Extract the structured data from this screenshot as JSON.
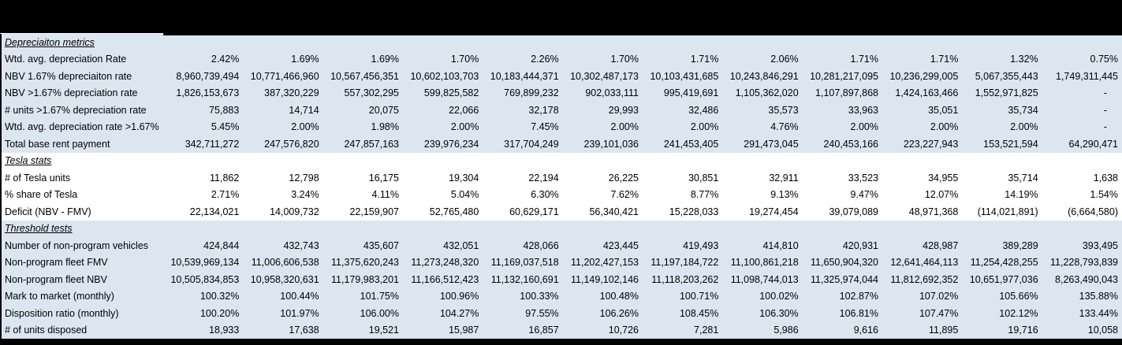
{
  "colors": {
    "section_fill_blue": "#dce6f1",
    "section_fill_white": "#ffffff",
    "bar_black": "#000000",
    "text": "#000000"
  },
  "table": {
    "data_column_count": 12,
    "sections": [
      {
        "header": "Depreciaiton metrics",
        "fill": "#dce6f1",
        "rows": [
          {
            "label": "Wtd. avg. depreciation Rate",
            "values": [
              "2.42%",
              "1.69%",
              "1.69%",
              "1.70%",
              "2.26%",
              "1.70%",
              "1.71%",
              "2.06%",
              "1.71%",
              "1.71%",
              "1.32%",
              "0.75%"
            ]
          },
          {
            "label": "NBV 1.67% depreciaiton rate",
            "values": [
              "8,960,739,494",
              "10,771,466,960",
              "10,567,456,351",
              "10,602,103,703",
              "10,183,444,371",
              "10,302,487,173",
              "10,103,431,685",
              "10,243,846,291",
              "10,281,217,095",
              "10,236,299,005",
              "5,067,355,443",
              "1,749,311,445"
            ]
          },
          {
            "label": "NBV >1.67% depreciation rate",
            "values": [
              "1,826,153,673",
              "387,320,229",
              "557,302,295",
              "599,825,582",
              "769,899,232",
              "902,033,111",
              "995,419,691",
              "1,105,362,020",
              "1,107,897,868",
              "1,424,163,466",
              "1,552,971,825",
              "-"
            ]
          },
          {
            "label": "# units >1.67% depreciation rate",
            "values": [
              "75,883",
              "14,714",
              "20,075",
              "22,066",
              "32,178",
              "29,993",
              "32,486",
              "35,573",
              "33,963",
              "35,051",
              "35,734",
              "-"
            ]
          },
          {
            "label": "Wtd. avg. depreciation rate >1.67%",
            "values": [
              "5.45%",
              "2.00%",
              "1.98%",
              "2.00%",
              "7.45%",
              "2.00%",
              "2.00%",
              "4.76%",
              "2.00%",
              "2.00%",
              "2.00%",
              "-"
            ]
          },
          {
            "label": "Total base rent payment",
            "values": [
              "342,711,272",
              "247,576,820",
              "247,857,163",
              "239,976,234",
              "317,704,249",
              "239,101,036",
              "241,453,405",
              "291,473,045",
              "240,453,166",
              "223,227,943",
              "153,521,594",
              "64,290,471"
            ]
          }
        ]
      },
      {
        "header": "Tesla stats",
        "fill": "#ffffff",
        "rows": [
          {
            "label": "# of Tesla units",
            "values": [
              "11,862",
              "12,798",
              "16,175",
              "19,304",
              "22,194",
              "26,225",
              "30,851",
              "32,911",
              "33,523",
              "34,955",
              "35,714",
              "1,638"
            ]
          },
          {
            "label": "% share of Tesla",
            "values": [
              "2.71%",
              "3.24%",
              "4.11%",
              "5.04%",
              "6.30%",
              "7.62%",
              "8.77%",
              "9.13%",
              "9.47%",
              "12.07%",
              "14.19%",
              "1.54%"
            ]
          },
          {
            "label": "Deficit (NBV - FMV)",
            "values": [
              "22,134,021",
              "14,009,732",
              "22,159,907",
              "52,765,480",
              "60,629,171",
              "56,340,421",
              "15,228,033",
              "19,274,454",
              "39,079,089",
              "48,971,368",
              "(114,021,891)",
              "(6,664,580)"
            ]
          }
        ]
      },
      {
        "header": "Threshold tests",
        "fill": "#dce6f1",
        "rows": [
          {
            "label": "Number of non-program vehicles",
            "values": [
              "424,844",
              "432,743",
              "435,607",
              "432,051",
              "428,066",
              "423,445",
              "419,493",
              "414,810",
              "420,931",
              "428,987",
              "389,289",
              "393,495"
            ]
          },
          {
            "label": "Non-program fleet FMV",
            "values": [
              "10,539,969,134",
              "11,006,606,538",
              "11,375,620,243",
              "11,273,248,320",
              "11,169,037,518",
              "11,202,427,153",
              "11,197,184,722",
              "11,100,861,218",
              "11,650,904,320",
              "12,641,464,113",
              "11,254,428,255",
              "11,228,793,839"
            ]
          },
          {
            "label": "Non-program fleet NBV",
            "values": [
              "10,505,834,853",
              "10,958,320,631",
              "11,179,983,201",
              "11,166,512,423",
              "11,132,160,691",
              "11,149,102,146",
              "11,118,203,262",
              "11,098,744,013",
              "11,325,974,044",
              "11,812,692,352",
              "10,651,977,036",
              "8,263,490,043"
            ]
          },
          {
            "label": "Mark to market (monthly)",
            "values": [
              "100.32%",
              "100.44%",
              "101.75%",
              "100.96%",
              "100.33%",
              "100.48%",
              "100.71%",
              "100.02%",
              "102.87%",
              "107.02%",
              "105.66%",
              "135.88%"
            ]
          },
          {
            "label": "Disposition ratio (monthly)",
            "values": [
              "100.20%",
              "101.97%",
              "106.00%",
              "104.27%",
              "97.55%",
              "106.26%",
              "108.45%",
              "106.30%",
              "106.81%",
              "107.47%",
              "102.12%",
              "133.44%"
            ]
          },
          {
            "label": "# of units disposed",
            "values": [
              "18,933",
              "17,638",
              "19,521",
              "15,987",
              "16,857",
              "10,726",
              "7,281",
              "5,986",
              "9,616",
              "11,895",
              "19,716",
              "10,058"
            ]
          }
        ]
      }
    ]
  }
}
